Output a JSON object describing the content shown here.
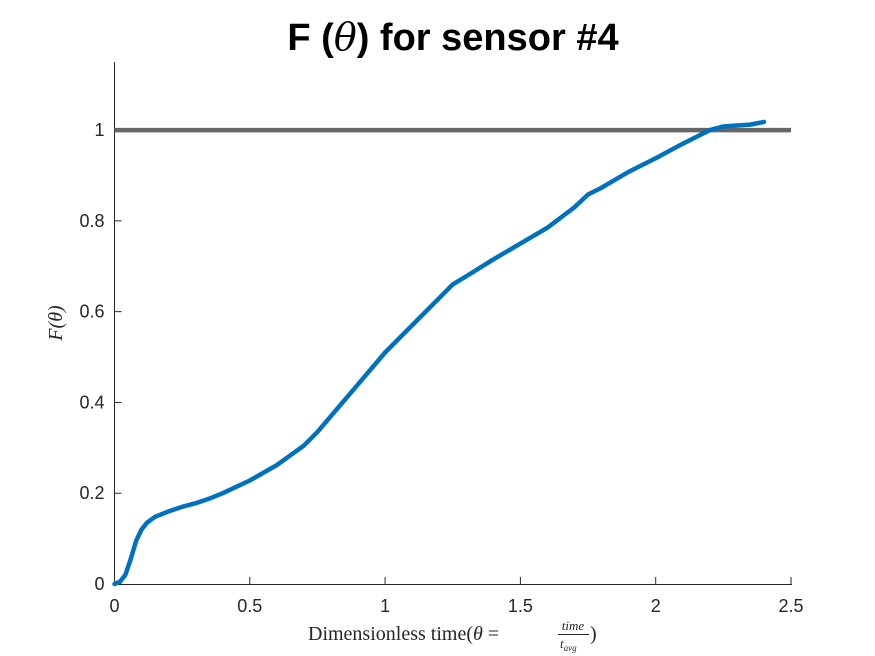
{
  "chart_data": {
    "type": "line",
    "title": {
      "prefix": "F (",
      "symbol": "θ",
      "suffix": ") for sensor #4"
    },
    "xlabel": {
      "text": "Dimensionless time(",
      "theta": "θ",
      "equals": " = ",
      "numerator": "time",
      "denominator_base": "t",
      "denominator_sub": "avg",
      "close": ")"
    },
    "ylabel": "F(θ)",
    "xlim": [
      0,
      2.5
    ],
    "ylim": [
      0,
      1.15
    ],
    "x_ticks": [
      "0",
      "0.5",
      "1",
      "1.5",
      "2",
      "2.5"
    ],
    "y_ticks": [
      "0",
      "0.2",
      "0.4",
      "0.6",
      "0.8",
      "1"
    ],
    "grid": false,
    "series": [
      {
        "color": "#0072BD",
        "x": [
          0,
          0.02,
          0.04,
          0.06,
          0.08,
          0.1,
          0.12,
          0.15,
          0.2,
          0.25,
          0.3,
          0.35,
          0.4,
          0.5,
          0.6,
          0.7,
          0.75,
          0.8,
          0.9,
          1.0,
          1.1,
          1.2,
          1.25,
          1.3,
          1.4,
          1.5,
          1.6,
          1.7,
          1.75,
          1.8,
          1.9,
          2.0,
          2.1,
          2.2,
          2.25,
          2.3,
          2.35,
          2.4
        ],
        "y": [
          0,
          0.005,
          0.02,
          0.055,
          0.095,
          0.12,
          0.135,
          0.148,
          0.16,
          0.17,
          0.178,
          0.188,
          0.2,
          0.228,
          0.262,
          0.305,
          0.335,
          0.37,
          0.44,
          0.51,
          0.57,
          0.63,
          0.66,
          0.678,
          0.715,
          0.75,
          0.785,
          0.83,
          0.858,
          0.873,
          0.908,
          0.938,
          0.97,
          1.0,
          1.008,
          1.01,
          1.012,
          1.018
        ]
      }
    ],
    "reference_line": {
      "y": 1,
      "color": "#666666"
    }
  }
}
